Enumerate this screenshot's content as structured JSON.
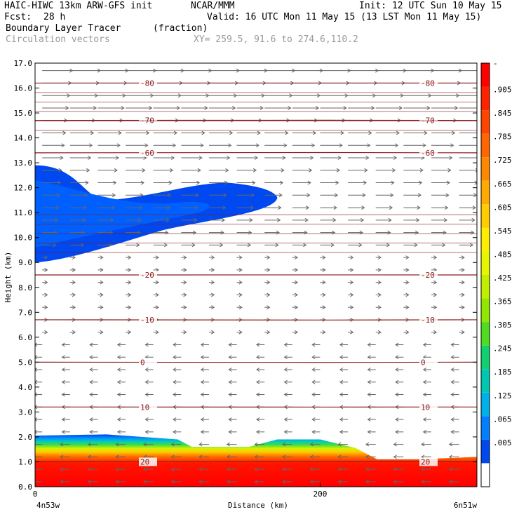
{
  "header": {
    "model": "HAIC-HIWC 13km ARW-GFS init",
    "org": "NCAR/MMM",
    "init": "Init: 12 UTC Sun 10 May 15",
    "fcst_label": "Fcst:",
    "fcst_value": "28 h",
    "valid": "Valid: 16 UTC Mon 11 May 15 (13 LST Mon 11 May 15)",
    "field": "Boundary Layer Tracer",
    "units": "(fraction)",
    "overlay": "Circulation vectors",
    "xy": "XY= 259.5, 91.6 to 274.6,110.2"
  },
  "chart_data": {
    "type": "cross-section",
    "ylabel": "Height (km)",
    "xlabel": "Distance (km)",
    "ylim": [
      0,
      17
    ],
    "yticks": [
      "0.0",
      "1.0",
      "2.0",
      "3.0",
      "4.0",
      "5.0",
      "6.0",
      "7.0",
      "8.0",
      "9.0",
      "10.0",
      "11.0",
      "12.0",
      "13.0",
      "14.0",
      "15.0",
      "16.0",
      "17.0"
    ],
    "xlim": [
      0,
      310
    ],
    "xticks": [
      {
        "value": 0,
        "label": "0"
      },
      {
        "value": 200,
        "label": "200"
      }
    ],
    "x_endpoints": {
      "left": "4n53w",
      "right": "6n51w"
    },
    "colorbar": {
      "labels": [
        "-",
        ".905",
        ".845",
        ".785",
        ".725",
        ".665",
        ".605",
        ".545",
        ".485",
        ".425",
        ".365",
        ".305",
        ".245",
        ".185",
        ".125",
        ".065",
        ".005"
      ],
      "colors": [
        "#ff0000",
        "#ff2200",
        "#ff4400",
        "#ff6600",
        "#ff8800",
        "#ffaa00",
        "#ffcc00",
        "#ffee00",
        "#e8f500",
        "#c0f000",
        "#90e800",
        "#50dd20",
        "#10d070",
        "#00c8b0",
        "#00b0e8",
        "#0080ff",
        "#0048f0",
        "#ffffff"
      ]
    },
    "isotherms": [
      {
        "label": "-80",
        "height_km": 16.2
      },
      {
        "label": "-70",
        "height_km": 14.7
      },
      {
        "label": "-60",
        "height_km": 13.4
      },
      {
        "label": "-20",
        "height_km": 8.5
      },
      {
        "label": "-10",
        "height_km": 6.7
      },
      {
        "label": "0",
        "height_km": 5.0
      },
      {
        "label": "10",
        "height_km": 3.2
      },
      {
        "label": "20",
        "height_km": 1.0
      }
    ],
    "tracer_layer_top_km": [
      [
        0,
        2.05
      ],
      [
        50,
        2.1
      ],
      [
        100,
        1.9
      ],
      [
        110,
        1.6
      ],
      [
        150,
        1.6
      ],
      [
        170,
        1.9
      ],
      [
        200,
        1.9
      ],
      [
        225,
        1.55
      ],
      [
        240,
        1.1
      ],
      [
        270,
        1.1
      ],
      [
        310,
        1.2
      ]
    ],
    "upper_tracer_plume_km": {
      "x": [
        0,
        170
      ],
      "bottom": 9.0,
      "top": 12.9
    }
  }
}
